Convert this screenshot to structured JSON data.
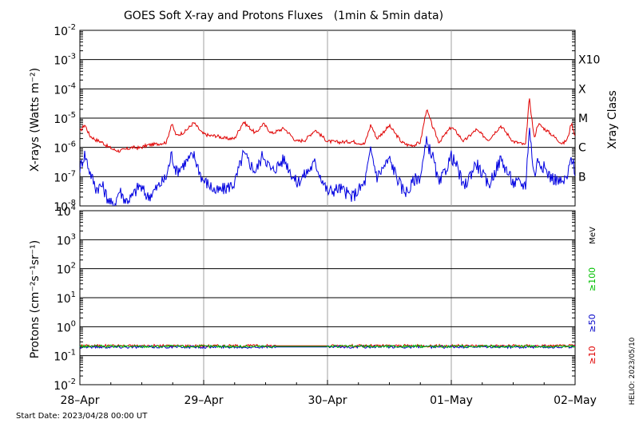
{
  "title": "GOES Soft X-ray and Protons Fluxes   (1min & 5min data)",
  "start_date_label": "Start Date: 2023/04/28 00:00 UT",
  "helio_label": "HELIO: 2023/05/10",
  "colors": {
    "long_xray": "#e00000",
    "short_xray": "#0000e0",
    "p10": "#e00000",
    "p50": "#0000c8",
    "p100": "#00c000",
    "grid": "#000000",
    "day_line": "#a0a0a0"
  },
  "chart_data": [
    {
      "type": "line",
      "panel": "xray",
      "ylabel": "X-rays (Watts m⁻²)",
      "yscale": "log",
      "ylim": [
        1e-08,
        0.01
      ],
      "y_ticks": [
        {
          "base": "10",
          "exp": "-2",
          "value": 0.01
        },
        {
          "base": "10",
          "exp": "-3",
          "value": 0.001
        },
        {
          "base": "10",
          "exp": "-4",
          "value": 0.0001
        },
        {
          "base": "10",
          "exp": "-5",
          "value": 1e-05
        },
        {
          "base": "10",
          "exp": "-6",
          "value": 1e-06
        },
        {
          "base": "10",
          "exp": "-7",
          "value": 1e-07
        },
        {
          "base": "10",
          "exp": "-8",
          "value": 1e-08
        }
      ],
      "right_axis_title": "Xray Class",
      "class_labels": [
        {
          "label": "X10",
          "value": 0.001
        },
        {
          "label": "X",
          "value": 0.0001
        },
        {
          "label": "M",
          "value": 1e-05
        },
        {
          "label": "C",
          "value": 1e-06
        },
        {
          "label": "B",
          "value": 1e-07
        }
      ],
      "x_unit": "days since 2023-04-28 00:00 UT",
      "xlim": [
        0,
        4
      ],
      "series": [
        {
          "color": "#e00000",
          "x": [
            0.0,
            0.04,
            0.08,
            0.13,
            0.18,
            0.22,
            0.27,
            0.32,
            0.37,
            0.42,
            0.48,
            0.55,
            0.62,
            0.7,
            0.74,
            0.78,
            0.85,
            0.92,
            0.99,
            1.05,
            1.1,
            1.18,
            1.25,
            1.32,
            1.42,
            1.48,
            1.55,
            1.65,
            1.75,
            1.82,
            1.9,
            2.0,
            2.1,
            2.2,
            2.3,
            2.35,
            2.4,
            2.5,
            2.6,
            2.65,
            2.7,
            2.75,
            2.8,
            2.85,
            2.9,
            3.0,
            3.05,
            3.1,
            3.2,
            3.3,
            3.4,
            3.5,
            3.55,
            3.6,
            3.63,
            3.67,
            3.7,
            3.8,
            3.9,
            3.94,
            3.97,
            4.0
          ],
          "y": [
            3.5e-06,
            6e-06,
            2.5e-06,
            1.8e-06,
            1.5e-06,
            1.1e-06,
            8.5e-07,
            7.5e-07,
            8.5e-07,
            1e-06,
            9.5e-07,
            1.2e-06,
            1.3e-06,
            1.5e-06,
            6.5e-06,
            2.5e-06,
            3.5e-06,
            7e-06,
            3e-06,
            2.5e-06,
            2.5e-06,
            2e-06,
            2e-06,
            7.5e-06,
            3e-06,
            6.5e-06,
            3e-06,
            4.5e-06,
            1.6e-06,
            1.8e-06,
            4e-06,
            1.6e-06,
            1.5e-06,
            1.6e-06,
            1.3e-06,
            6e-06,
            2e-06,
            5.5e-06,
            1.5e-06,
            1.2e-06,
            1.2e-06,
            1.5e-06,
            2e-05,
            5e-06,
            1.5e-06,
            5e-06,
            3e-06,
            1.6e-06,
            4e-06,
            1.8e-06,
            5.5e-06,
            1.6e-06,
            1.4e-06,
            1.2e-06,
            5e-05,
            2e-06,
            6.5e-06,
            3e-06,
            1.3e-06,
            2e-06,
            7e-06,
            2.5e-06
          ]
        },
        {
          "color": "#0000e0",
          "x": [
            0.0,
            0.04,
            0.08,
            0.13,
            0.18,
            0.22,
            0.27,
            0.32,
            0.37,
            0.42,
            0.48,
            0.55,
            0.62,
            0.7,
            0.74,
            0.78,
            0.85,
            0.92,
            0.99,
            1.05,
            1.1,
            1.18,
            1.25,
            1.32,
            1.42,
            1.48,
            1.55,
            1.65,
            1.75,
            1.82,
            1.9,
            2.0,
            2.1,
            2.2,
            2.3,
            2.35,
            2.4,
            2.5,
            2.6,
            2.65,
            2.7,
            2.75,
            2.8,
            2.85,
            2.9,
            3.0,
            3.05,
            3.1,
            3.2,
            3.3,
            3.4,
            3.5,
            3.55,
            3.6,
            3.63,
            3.67,
            3.7,
            3.8,
            3.9,
            3.94,
            3.97,
            4.0
          ],
          "y": [
            2e-07,
            6e-07,
            1.5e-07,
            4e-08,
            5e-08,
            2e-08,
            9e-09,
            3.5e-08,
            1.5e-08,
            2e-08,
            5e-08,
            2e-08,
            4e-08,
            1e-07,
            6e-07,
            1.5e-07,
            3e-07,
            5.5e-07,
            8e-08,
            5e-08,
            3e-08,
            4e-08,
            6e-08,
            6e-07,
            1.5e-07,
            6e-07,
            1.5e-07,
            4e-07,
            6e-08,
            1.2e-07,
            3e-07,
            3e-08,
            4e-08,
            2e-08,
            6e-08,
            8e-07,
            1e-07,
            4e-07,
            4e-08,
            3e-08,
            8e-08,
            1e-07,
            1.5e-06,
            5e-07,
            5e-08,
            5e-07,
            2e-07,
            4e-08,
            3e-07,
            5e-08,
            4e-07,
            6e-08,
            6e-08,
            5e-08,
            5e-06,
            1e-07,
            4e-07,
            1e-07,
            6e-08,
            1e-07,
            5e-07,
            1.5e-07
          ]
        }
      ]
    },
    {
      "type": "line",
      "panel": "protons",
      "ylabel": "Protons (cm⁻²s⁻¹sr⁻¹)",
      "yscale": "log",
      "ylim": [
        0.01,
        10000
      ],
      "y_ticks": [
        {
          "base": "10",
          "exp": "4",
          "value": 10000.0
        },
        {
          "base": "10",
          "exp": "3",
          "value": 1000.0
        },
        {
          "base": "10",
          "exp": "2",
          "value": 100.0
        },
        {
          "base": "10",
          "exp": "1",
          "value": 10.0
        },
        {
          "base": "10",
          "exp": "0",
          "value": 1.0
        },
        {
          "base": "10",
          "exp": "-1",
          "value": 0.1
        },
        {
          "base": "10",
          "exp": "-2",
          "value": 0.01
        }
      ],
      "threshold_dashed_value": 10,
      "right_unit_label": "MeV",
      "energy_labels": [
        {
          "label": "≥100",
          "color": "#00c000"
        },
        {
          "label": "≥50",
          "color": "#0000c8"
        },
        {
          "label": "≥10",
          "color": "#e00000"
        }
      ],
      "data_gap": [
        1.58,
        2.0
      ],
      "series": [
        {
          "color": "#e00000",
          "level": 0.22
        },
        {
          "color": "#0000c8",
          "level": 0.2
        },
        {
          "color": "#00c000",
          "level": 0.21
        }
      ]
    }
  ],
  "x_axis": {
    "ticks": [
      "28–Apr",
      "29–Apr",
      "30–Apr",
      "01–May",
      "02–May"
    ]
  }
}
